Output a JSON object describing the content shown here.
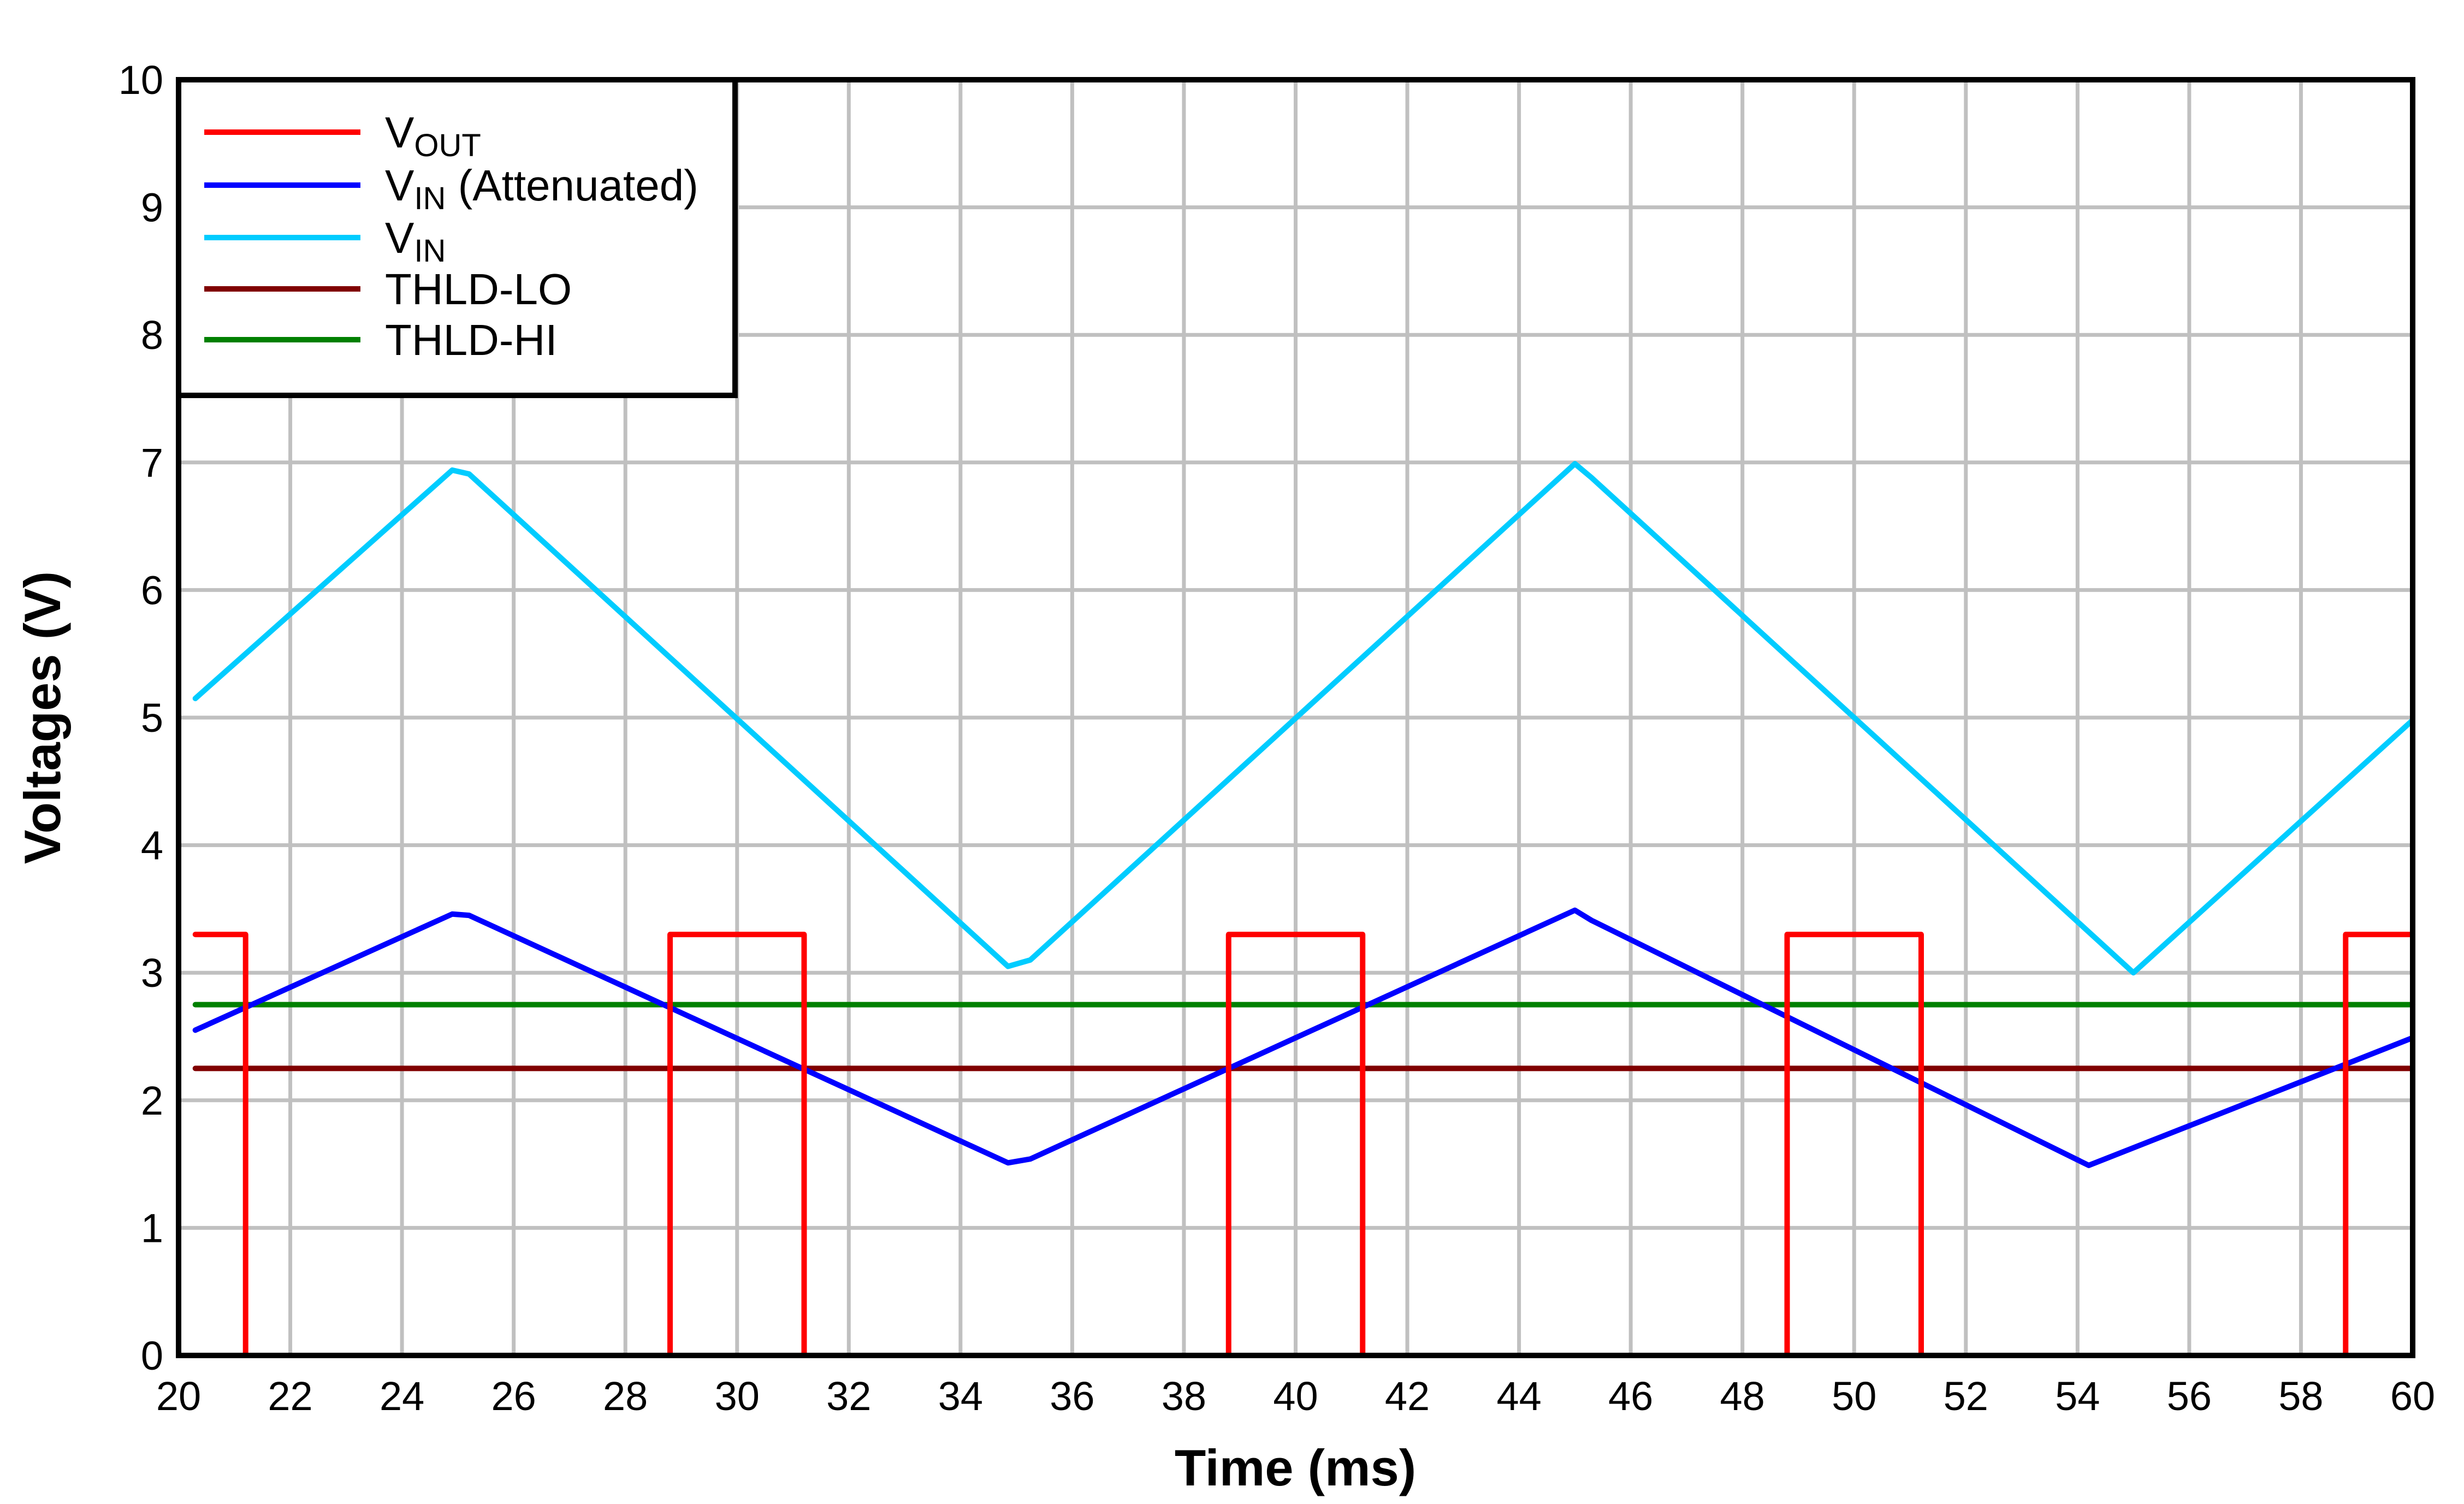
{
  "chart_data": {
    "type": "line",
    "xlabel": "Time (ms)",
    "ylabel": "Voltages (V)",
    "xlim": [
      20,
      60
    ],
    "ylim": [
      0,
      10
    ],
    "xticks": [
      "20",
      "22",
      "24",
      "26",
      "28",
      "30",
      "32",
      "34",
      "36",
      "38",
      "40",
      "42",
      "44",
      "46",
      "48",
      "50",
      "52",
      "54",
      "56",
      "58",
      "60"
    ],
    "yticks": [
      "0",
      "1",
      "2",
      "3",
      "4",
      "5",
      "6",
      "7",
      "8",
      "9",
      "10"
    ],
    "grid": true,
    "legend_position": "top-left",
    "series": [
      {
        "name": "V",
        "name_sub": "OUT",
        "color": "#ff0000",
        "x": [
          20.3,
          21.2,
          21.2,
          28.8,
          28.8,
          31.2,
          31.2,
          38.8,
          38.8,
          41.2,
          41.2,
          48.8,
          48.8,
          51.2,
          51.2,
          58.8,
          58.8,
          60
        ],
        "y": [
          3.3,
          3.3,
          0,
          0,
          3.3,
          3.3,
          0,
          0,
          3.3,
          3.3,
          0,
          0,
          3.3,
          3.3,
          0,
          0,
          3.3,
          3.3
        ]
      },
      {
        "name": "V",
        "name_sub": "IN",
        "name_suffix": " (Attenuated)",
        "color": "#0000ff",
        "x": [
          20.3,
          24.9,
          25.2,
          34.85,
          35.25,
          45.0,
          45.3,
          54.2,
          60
        ],
        "y": [
          2.55,
          3.46,
          3.45,
          1.51,
          1.54,
          3.49,
          3.41,
          1.49,
          2.49
        ]
      },
      {
        "name": "V",
        "name_sub": "IN",
        "name_suffix": "",
        "color": "#00ccff",
        "x": [
          20.3,
          24.9,
          25.2,
          34.85,
          35.25,
          45.0,
          45.3,
          55.0,
          60
        ],
        "y": [
          5.15,
          6.94,
          6.91,
          3.05,
          3.1,
          6.99,
          6.88,
          3.0,
          4.98
        ]
      },
      {
        "name": "THLD-LO",
        "color": "#800000",
        "x": [
          20.3,
          60
        ],
        "y": [
          2.25,
          2.25
        ]
      },
      {
        "name": "THLD-HI",
        "color": "#008000",
        "x": [
          20.3,
          60
        ],
        "y": [
          2.75,
          2.75
        ]
      }
    ]
  }
}
